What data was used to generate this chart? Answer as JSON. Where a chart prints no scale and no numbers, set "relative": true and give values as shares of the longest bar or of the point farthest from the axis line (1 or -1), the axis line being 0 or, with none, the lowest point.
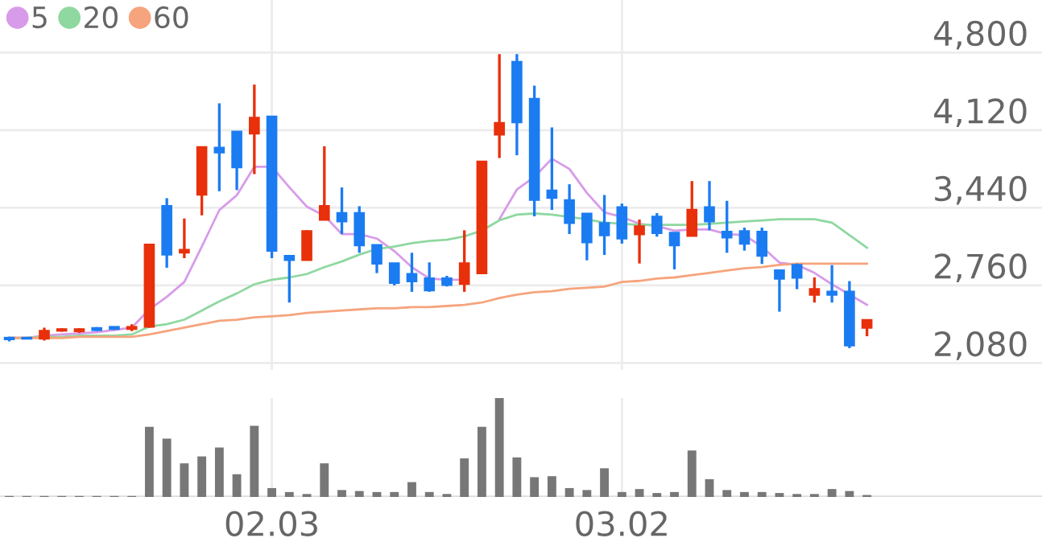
{
  "chart_data": [
    {
      "type": "candlestick",
      "categories": [
        null,
        null,
        null,
        null,
        null,
        null,
        null,
        null,
        null,
        null,
        null,
        null,
        null,
        null,
        null,
        "02.03",
        null,
        null,
        null,
        null,
        null,
        null,
        null,
        null,
        null,
        null,
        null,
        null,
        null,
        null,
        null,
        null,
        null,
        null,
        null,
        "03.02",
        null,
        null,
        null,
        null,
        null,
        null,
        null,
        null,
        null,
        null,
        null,
        null,
        null,
        null
      ],
      "ohlc": [
        [
          2300,
          2310,
          2270,
          2290
        ],
        [
          2300,
          2305,
          2290,
          2295
        ],
        [
          2296,
          2390,
          2277,
          2361
        ],
        [
          2365,
          2385,
          2355,
          2375
        ],
        [
          2360,
          2385,
          2345,
          2375
        ],
        [
          2385,
          2395,
          2360,
          2370
        ],
        [
          2395,
          2400,
          2370,
          2380
        ],
        [
          2380,
          2420,
          2360,
          2395
        ],
        [
          2399,
          3116,
          2390,
          3116
        ],
        [
          3454,
          3524,
          2915,
          3032
        ],
        [
          3050,
          3346,
          2999,
          3070
        ],
        [
          3557,
          3970,
          3374,
          3970
        ],
        [
          3965,
          4355,
          3585,
          3927
        ],
        [
          4106,
          4106,
          3595,
          3796
        ],
        [
          4092,
          4519,
          3735,
          4228
        ],
        [
          4238,
          4238,
          2999,
          3065
        ],
        [
          3018,
          3018,
          2610,
          2985
        ],
        [
          2985,
          3243,
          2985,
          3234
        ],
        [
          3337,
          3979,
          3337,
          3454
        ],
        [
          3393,
          3618,
          3210,
          3323
        ],
        [
          3393,
          3454,
          3046,
          3112
        ],
        [
          3112,
          3112,
          2868,
          2952
        ],
        [
          2952,
          2952,
          2760,
          2783
        ],
        [
          2859,
          3046,
          2704,
          2798
        ],
        [
          2821,
          2962,
          2704,
          2718
        ],
        [
          2821,
          2844,
          2751,
          2765
        ],
        [
          2774,
          3243,
          2704,
          2952
        ],
        [
          2868,
          3843,
          2859,
          3843
        ],
        [
          4083,
          4786,
          3876,
          4181
        ],
        [
          4716,
          4786,
          3900,
          4190
        ],
        [
          4392,
          4510,
          3365,
          3510
        ],
        [
          3589,
          4144,
          3421,
          3529
        ],
        [
          3505,
          3646,
          3210,
          3308
        ],
        [
          3388,
          3388,
          2980,
          3140
        ],
        [
          3304,
          3552,
          3027,
          3201
        ],
        [
          3444,
          3477,
          3126,
          3173
        ],
        [
          3210,
          3337,
          2952,
          3276
        ],
        [
          3360,
          3393,
          3187,
          3220
        ],
        [
          3220,
          3220,
          2901,
          3112
        ],
        [
          3196,
          3674,
          3196,
          3421
        ],
        [
          3444,
          3674,
          3243,
          3323
        ],
        [
          3229,
          3501,
          3046,
          3182
        ],
        [
          3234,
          3266,
          3065,
          3126
        ],
        [
          3229,
          3266,
          2948,
          3022
        ],
        [
          2891,
          2891,
          2530,
          2821
        ],
        [
          2938,
          2952,
          2727,
          2830
        ],
        [
          2680,
          2830,
          2610,
          2727
        ],
        [
          2704,
          2938,
          2610,
          2680
        ],
        [
          2704,
          2798,
          2211,
          2235
        ],
        [
          2390,
          2455,
          2315,
          2455
        ]
      ],
      "colors": [
        "#1b7cf2",
        "#1b7cf2",
        "#e8300b",
        "#e8300b",
        "#e8300b",
        "#1b7cf2",
        "#1b7cf2",
        "#e8300b",
        "#e8300b",
        "#1b7cf2",
        "#e8300b",
        "#e8300b",
        "#1b7cf2",
        "#1b7cf2",
        "#e8300b",
        "#1b7cf2",
        "#1b7cf2",
        "#e8300b",
        "#e8300b",
        "#1b7cf2",
        "#1b7cf2",
        "#1b7cf2",
        "#1b7cf2",
        "#1b7cf2",
        "#1b7cf2",
        "#1b7cf2",
        "#e8300b",
        "#e8300b",
        "#e8300b",
        "#1b7cf2",
        "#1b7cf2",
        "#1b7cf2",
        "#1b7cf2",
        "#1b7cf2",
        "#1b7cf2",
        "#1b7cf2",
        "#e8300b",
        "#1b7cf2",
        "#1b7cf2",
        "#e8300b",
        "#1b7cf2",
        "#1b7cf2",
        "#1b7cf2",
        "#1b7cf2",
        "#1b7cf2",
        "#1b7cf2",
        "#e8300b",
        "#1b7cf2",
        "#1b7cf2",
        "#e8300b"
      ],
      "series": [
        {
          "name": "5",
          "type": "line",
          "color": "#d89be9",
          "values": [
            2300,
            2300,
            2320,
            2330,
            2340,
            2350,
            2370,
            2390,
            2550,
            2660,
            2790,
            3100,
            3420,
            3550,
            3800,
            3800,
            3620,
            3450,
            3370,
            3210,
            3210,
            3170,
            3060,
            2920,
            2820,
            2810,
            2810,
            null,
            3340,
            3600,
            3710,
            3870,
            3780,
            3570,
            3400,
            3360,
            3300,
            3280,
            3240,
            3250,
            3250,
            3210,
            3200,
            3100,
            2960,
            2940,
            2870,
            2770,
            2680,
            2590
          ]
        },
        {
          "name": "20",
          "type": "line",
          "color": "#8fd8a0",
          "values": [
            2300,
            2300,
            2310,
            2310,
            2320,
            2320,
            2320,
            2330,
            2400,
            2420,
            2460,
            2540,
            2620,
            2690,
            2770,
            2810,
            2830,
            2860,
            2920,
            2970,
            3030,
            3080,
            3100,
            3130,
            3150,
            3160,
            3190,
            3240,
            3330,
            3380,
            3390,
            3380,
            3360,
            3340,
            3310,
            3300,
            3290,
            3290,
            3290,
            3290,
            3300,
            3310,
            3320,
            3330,
            3340,
            3340,
            3340,
            3310,
            3200,
            3090
          ]
        },
        {
          "name": "60",
          "type": "line",
          "color": "#f6a47d",
          "values": [
            2300,
            2300,
            2300,
            2300,
            2310,
            2310,
            2310,
            2310,
            2330,
            2360,
            2390,
            2420,
            2450,
            2460,
            2480,
            2490,
            2500,
            2520,
            2530,
            2540,
            2550,
            2560,
            2560,
            2570,
            2570,
            2580,
            2590,
            2610,
            2650,
            2680,
            2700,
            2710,
            2730,
            2740,
            2750,
            2790,
            2800,
            2820,
            2830,
            2850,
            2870,
            2890,
            2910,
            2920,
            2940,
            2950,
            2950,
            2950,
            2950,
            2950
          ]
        }
      ],
      "ylim": [
        2020,
        5260
      ],
      "yticks": [
        {
          "value": 2080,
          "label": "2,080"
        },
        {
          "value": 2760,
          "label": "2,760"
        },
        {
          "value": 3440,
          "label": "3,440"
        },
        {
          "value": 4120,
          "label": "4,120"
        },
        {
          "value": 4800,
          "label": "4,800"
        }
      ],
      "grid": true,
      "legend": "top left",
      "tick_labels": "y"
    },
    {
      "type": "bar",
      "relative": true,
      "color": "#777777",
      "categories": [
        null,
        null,
        null,
        null,
        null,
        null,
        null,
        null,
        null,
        null,
        null,
        null,
        null,
        null,
        null,
        "02.03",
        null,
        null,
        null,
        null,
        null,
        null,
        null,
        null,
        null,
        null,
        null,
        null,
        null,
        null,
        null,
        null,
        null,
        null,
        null,
        "03.02",
        null,
        null,
        null,
        null,
        null,
        null,
        null,
        null,
        null,
        null,
        null,
        null,
        null,
        null
      ],
      "values": [
        0.01,
        0.01,
        0.01,
        0.01,
        0.01,
        0.01,
        0.01,
        0.01,
        0.71,
        0.59,
        0.34,
        0.41,
        0.5,
        0.23,
        0.72,
        0.09,
        0.05,
        0.03,
        0.34,
        0.07,
        0.06,
        0.05,
        0.05,
        0.15,
        0.05,
        0.03,
        0.39,
        0.71,
        1,
        0.4,
        0.2,
        0.21,
        0.09,
        0.07,
        0.29,
        0.05,
        0.08,
        0.04,
        0.05,
        0.47,
        0.18,
        0.07,
        0.05,
        0.05,
        0.04,
        0.03,
        0.03,
        0.08,
        0.06,
        0.02
      ],
      "grid": "x",
      "tick_labels": "x"
    }
  ]
}
